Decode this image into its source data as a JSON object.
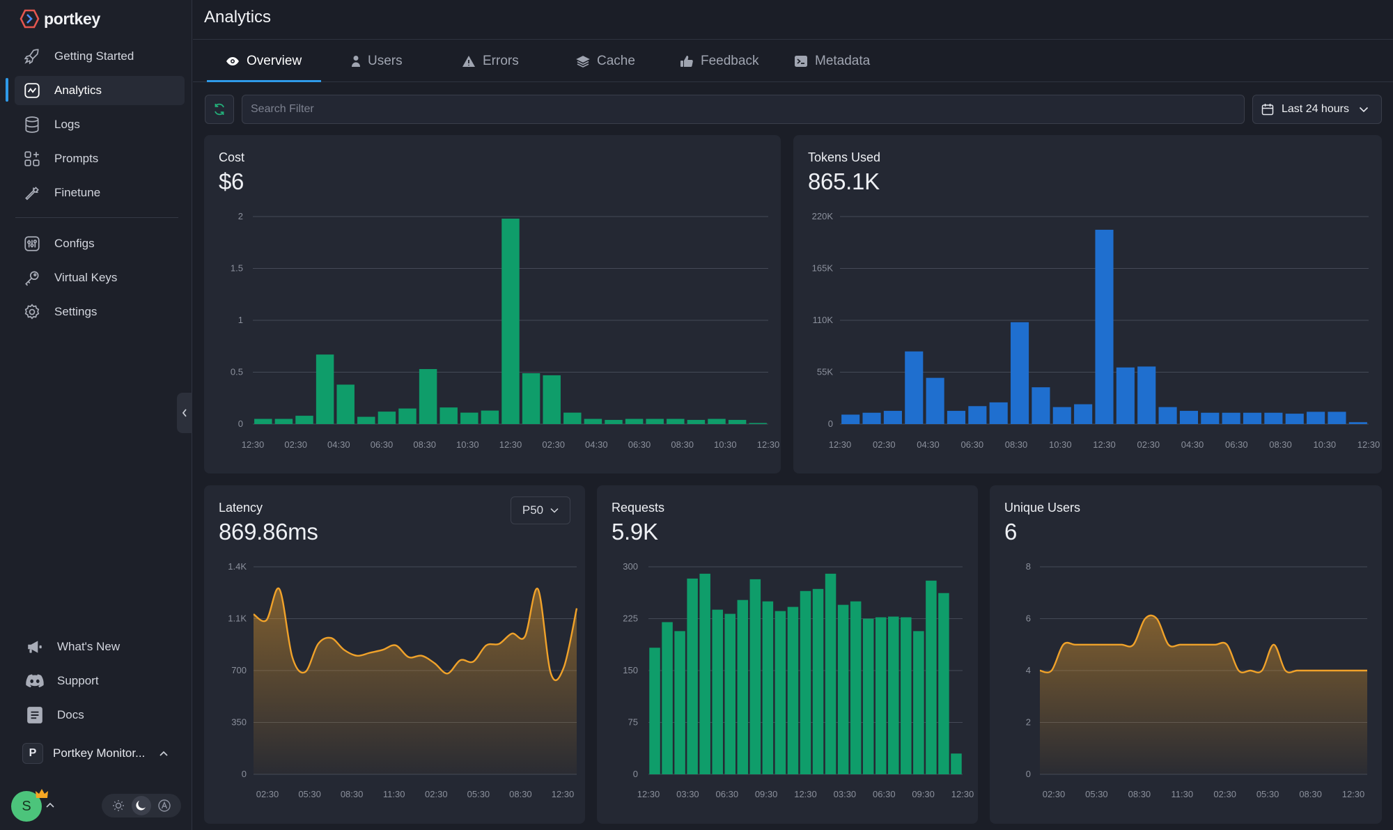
{
  "brand": {
    "name": "portkey",
    "logo_icon": "portkey-logo-icon"
  },
  "sidebar": {
    "items": [
      {
        "label": "Getting Started",
        "icon": "rocket-icon"
      },
      {
        "label": "Analytics",
        "icon": "analytics-icon",
        "active": true
      },
      {
        "label": "Logs",
        "icon": "database-icon"
      },
      {
        "label": "Prompts",
        "icon": "prompts-grid-icon"
      },
      {
        "label": "Finetune",
        "icon": "wrench-icon"
      },
      {
        "label": "Configs",
        "icon": "sliders-icon"
      },
      {
        "label": "Virtual Keys",
        "icon": "key-icon"
      },
      {
        "label": "Settings",
        "icon": "gear-icon"
      }
    ],
    "bottom_items": [
      {
        "label": "What's New",
        "icon": "megaphone-icon"
      },
      {
        "label": "Support",
        "icon": "discord-icon"
      },
      {
        "label": "Docs",
        "icon": "document-icon"
      }
    ],
    "org": {
      "initial": "P",
      "name": "Portkey Monitor..."
    },
    "user": {
      "initial": "S"
    }
  },
  "header": {
    "title": "Analytics"
  },
  "tabs": [
    {
      "label": "Overview",
      "icon": "eye-icon",
      "active": true
    },
    {
      "label": "Users",
      "icon": "user-icon"
    },
    {
      "label": "Errors",
      "icon": "warning-icon"
    },
    {
      "label": "Cache",
      "icon": "layers-icon"
    },
    {
      "label": "Feedback",
      "icon": "thumbs-up-icon"
    },
    {
      "label": "Metadata",
      "icon": "terminal-icon"
    }
  ],
  "filter": {
    "placeholder": "Search Filter",
    "value": "",
    "range_label": "Last 24 hours"
  },
  "colors": {
    "accent": "#2f9ae8",
    "green": "#0f9d6a",
    "blue": "#1f6fcf",
    "orange": "#f0a22a"
  },
  "chart_data": [
    {
      "id": "cost",
      "type": "bar",
      "title": "Cost",
      "value": "$6",
      "color": "#0f9d6a",
      "ylim": [
        0,
        2
      ],
      "yticks": [
        0,
        0.5,
        1,
        1.5,
        2
      ],
      "ytick_labels": [
        "0",
        "0.5",
        "1",
        "1.5",
        "2"
      ],
      "xtick_labels": [
        "12:30",
        "02:30",
        "04:30",
        "06:30",
        "08:30",
        "10:30",
        "12:30",
        "02:30",
        "04:30",
        "06:30",
        "08:30",
        "10:30",
        "12:30"
      ],
      "values": [
        0.05,
        0.05,
        0.08,
        0.67,
        0.38,
        0.07,
        0.12,
        0.15,
        0.53,
        0.16,
        0.11,
        0.13,
        1.98,
        0.49,
        0.47,
        0.11,
        0.05,
        0.04,
        0.05,
        0.05,
        0.05,
        0.04,
        0.05,
        0.04,
        0.01
      ]
    },
    {
      "id": "tokens",
      "type": "bar",
      "title": "Tokens Used",
      "value": "865.1K",
      "color": "#1f6fcf",
      "ylim": [
        0,
        220000
      ],
      "yticks": [
        0,
        55000,
        110000,
        165000,
        220000
      ],
      "ytick_labels": [
        "0",
        "55K",
        "110K",
        "165K",
        "220K"
      ],
      "xtick_labels": [
        "12:30",
        "02:30",
        "04:30",
        "06:30",
        "08:30",
        "10:30",
        "12:30",
        "02:30",
        "04:30",
        "06:30",
        "08:30",
        "10:30",
        "12:30"
      ],
      "values": [
        10000,
        12000,
        14000,
        77000,
        49000,
        14000,
        19000,
        23000,
        108000,
        39000,
        18000,
        21000,
        206000,
        60000,
        61000,
        18000,
        14000,
        12000,
        12000,
        12000,
        12000,
        11000,
        13000,
        13000,
        2000
      ]
    },
    {
      "id": "latency",
      "type": "area",
      "title": "Latency",
      "value": "869.86ms",
      "color": "#f0a22a",
      "selector": "P50",
      "ylim": [
        0,
        1400
      ],
      "yticks": [
        0,
        350,
        700,
        1050,
        1400
      ],
      "ytick_labels": [
        "0",
        "350",
        "700",
        "1.1K",
        "1.4K"
      ],
      "xtick_labels": [
        "02:30",
        "05:30",
        "08:30",
        "11:30",
        "02:30",
        "05:30",
        "08:30",
        "12:30"
      ],
      "values": [
        1080,
        1040,
        1250,
        790,
        690,
        880,
        920,
        840,
        800,
        820,
        840,
        870,
        790,
        800,
        750,
        680,
        770,
        760,
        870,
        880,
        950,
        930,
        1250,
        680,
        720,
        1120
      ]
    },
    {
      "id": "requests",
      "type": "bar",
      "title": "Requests",
      "value": "5.9K",
      "color": "#0f9d6a",
      "ylim": [
        0,
        300
      ],
      "yticks": [
        0,
        75,
        150,
        225,
        300
      ],
      "ytick_labels": [
        "0",
        "75",
        "150",
        "225",
        "300"
      ],
      "xtick_labels": [
        "12:30",
        "03:30",
        "06:30",
        "09:30",
        "12:30",
        "03:30",
        "06:30",
        "09:30",
        "12:30"
      ],
      "values": [
        183,
        220,
        207,
        283,
        290,
        238,
        232,
        252,
        282,
        250,
        236,
        242,
        265,
        268,
        290,
        245,
        250,
        225,
        227,
        228,
        227,
        207,
        280,
        262,
        30
      ]
    },
    {
      "id": "users",
      "type": "area",
      "title": "Unique Users",
      "value": "6",
      "color": "#f0a22a",
      "ylim": [
        0,
        8
      ],
      "yticks": [
        0,
        2,
        4,
        6,
        8
      ],
      "ytick_labels": [
        "0",
        "2",
        "4",
        "6",
        "8"
      ],
      "xtick_labels": [
        "02:30",
        "05:30",
        "08:30",
        "11:30",
        "02:30",
        "05:30",
        "08:30",
        "12:30"
      ],
      "values": [
        4,
        4,
        5,
        5,
        5,
        5,
        5,
        5,
        5,
        6,
        6,
        5,
        5,
        5,
        5,
        5,
        5,
        4,
        4,
        4,
        5,
        4,
        4,
        4,
        4,
        4,
        4,
        4,
        4
      ]
    }
  ]
}
